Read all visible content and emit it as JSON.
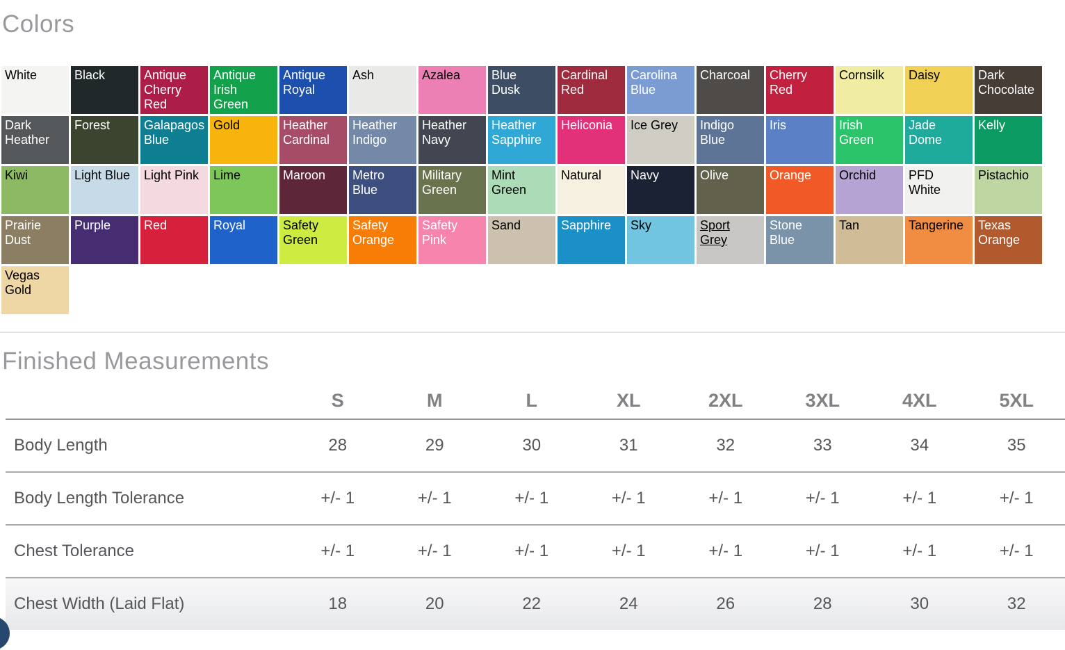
{
  "colors": {
    "heading": "Colors",
    "swatches": [
      {
        "name": "White",
        "bg": "#f4f4f3",
        "text": "#000000"
      },
      {
        "name": "Black",
        "bg": "#212829",
        "text": "#ffffff"
      },
      {
        "name": "Antique Cherry Red",
        "bg": "#ac1e47",
        "text": "#ffffff"
      },
      {
        "name": "Antique Irish Green",
        "bg": "#13a24b",
        "text": "#ffffff"
      },
      {
        "name": "Antique Royal",
        "bg": "#1c4fae",
        "text": "#ffffff"
      },
      {
        "name": "Ash",
        "bg": "#e9e9e7",
        "text": "#000000"
      },
      {
        "name": "Azalea",
        "bg": "#ec7fb4",
        "text": "#000000"
      },
      {
        "name": "Blue Dusk",
        "bg": "#3d4d64",
        "text": "#ffffff"
      },
      {
        "name": "Cardinal Red",
        "bg": "#9e2c3e",
        "text": "#ffffff"
      },
      {
        "name": "Carolina Blue",
        "bg": "#7b9cd3",
        "text": "#ffffff"
      },
      {
        "name": "Charcoal",
        "bg": "#4e4b49",
        "text": "#ffffff"
      },
      {
        "name": "Cherry Red",
        "bg": "#c2203f",
        "text": "#ffffff"
      },
      {
        "name": "Cornsilk",
        "bg": "#f0eca1",
        "text": "#000000"
      },
      {
        "name": "Daisy",
        "bg": "#f0d155",
        "text": "#000000"
      },
      {
        "name": "Dark Chocolate",
        "bg": "#463d37",
        "text": "#ffffff"
      },
      {
        "name": "Dark Heather",
        "bg": "#54585a",
        "text": "#ffffff"
      },
      {
        "name": "Forest",
        "bg": "#3b442f",
        "text": "#ffffff"
      },
      {
        "name": "Galapagos Blue",
        "bg": "#0e7f93",
        "text": "#ffffff"
      },
      {
        "name": "Gold",
        "bg": "#f6b40d",
        "text": "#000000"
      },
      {
        "name": "Heather Cardinal",
        "bg": "#a64c66",
        "text": "#ffffff"
      },
      {
        "name": "Heather Indigo",
        "bg": "#7389a7",
        "text": "#ffffff"
      },
      {
        "name": "Heather Navy",
        "bg": "#414650",
        "text": "#ffffff"
      },
      {
        "name": "Heather Sapphire",
        "bg": "#2fa8d5",
        "text": "#ffffff"
      },
      {
        "name": "Heliconia",
        "bg": "#e23179",
        "text": "#ffffff"
      },
      {
        "name": "Ice Grey",
        "bg": "#d0cdc4",
        "text": "#000000"
      },
      {
        "name": "Indigo Blue",
        "bg": "#5d7496",
        "text": "#ffffff"
      },
      {
        "name": "Iris",
        "bg": "#5b80c6",
        "text": "#ffffff"
      },
      {
        "name": "Irish Green",
        "bg": "#2cc46a",
        "text": "#ffffff"
      },
      {
        "name": "Jade Dome",
        "bg": "#1fab9b",
        "text": "#ffffff"
      },
      {
        "name": "Kelly",
        "bg": "#0b9b62",
        "text": "#ffffff"
      },
      {
        "name": "Kiwi",
        "bg": "#8db965",
        "text": "#000000"
      },
      {
        "name": "Light Blue",
        "bg": "#c6dbe7",
        "text": "#000000"
      },
      {
        "name": "Light Pink",
        "bg": "#f4d9e0",
        "text": "#000000"
      },
      {
        "name": "Lime",
        "bg": "#7cc65a",
        "text": "#000000"
      },
      {
        "name": "Maroon",
        "bg": "#5d2639",
        "text": "#ffffff"
      },
      {
        "name": "Metro Blue",
        "bg": "#3d4f7e",
        "text": "#ffffff"
      },
      {
        "name": "Military Green",
        "bg": "#69734e",
        "text": "#ffffff"
      },
      {
        "name": "Mint Green",
        "bg": "#abdcb7",
        "text": "#000000"
      },
      {
        "name": "Natural",
        "bg": "#f6f0e1",
        "text": "#000000"
      },
      {
        "name": "Navy",
        "bg": "#1a2233",
        "text": "#ffffff"
      },
      {
        "name": "Olive",
        "bg": "#62614b",
        "text": "#ffffff"
      },
      {
        "name": "Orange",
        "bg": "#f15a26",
        "text": "#ffffff"
      },
      {
        "name": "Orchid",
        "bg": "#b5a3d3",
        "text": "#000000"
      },
      {
        "name": "PFD White",
        "bg": "#f1f1ef",
        "text": "#000000"
      },
      {
        "name": "Pistachio",
        "bg": "#bed7a2",
        "text": "#000000"
      },
      {
        "name": "Prairie Dust",
        "bg": "#8b7e63",
        "text": "#ffffff"
      },
      {
        "name": "Purple",
        "bg": "#462d72",
        "text": "#ffffff"
      },
      {
        "name": "Red",
        "bg": "#d7213c",
        "text": "#ffffff"
      },
      {
        "name": "Royal",
        "bg": "#1f62c9",
        "text": "#ffffff"
      },
      {
        "name": "Safety Green",
        "bg": "#cdeb40",
        "text": "#000000"
      },
      {
        "name": "Safety Orange",
        "bg": "#f87d07",
        "text": "#ffffff"
      },
      {
        "name": "Safety Pink",
        "bg": "#f684ad",
        "text": "#ffffff"
      },
      {
        "name": "Sand",
        "bg": "#ccc1ae",
        "text": "#000000"
      },
      {
        "name": "Sapphire",
        "bg": "#1b90c6",
        "text": "#ffffff"
      },
      {
        "name": "Sky",
        "bg": "#72c5e0",
        "text": "#000000"
      },
      {
        "name": "Sport Grey",
        "bg": "#c8c7c5",
        "text": "#000000",
        "link": true
      },
      {
        "name": "Stone Blue",
        "bg": "#7b93a8",
        "text": "#ffffff"
      },
      {
        "name": "Tan",
        "bg": "#d0bc96",
        "text": "#000000"
      },
      {
        "name": "Tangerine",
        "bg": "#f18d42",
        "text": "#000000"
      },
      {
        "name": "Texas Orange",
        "bg": "#b05a2e",
        "text": "#ffffff"
      },
      {
        "name": "Vegas Gold",
        "bg": "#eed6a5",
        "text": "#000000"
      }
    ]
  },
  "measurements": {
    "heading": "Finished Measurements",
    "sizes": [
      "S",
      "M",
      "L",
      "XL",
      "2XL",
      "3XL",
      "4XL",
      "5XL"
    ],
    "rows": [
      {
        "label": "Body Length",
        "values": [
          "28",
          "29",
          "30",
          "31",
          "32",
          "33",
          "34",
          "35"
        ]
      },
      {
        "label": "Body Length Tolerance",
        "values": [
          "+/- 1",
          "+/- 1",
          "+/- 1",
          "+/- 1",
          "+/- 1",
          "+/- 1",
          "+/- 1",
          "+/- 1"
        ]
      },
      {
        "label": "Chest Tolerance",
        "values": [
          "+/- 1",
          "+/- 1",
          "+/- 1",
          "+/- 1",
          "+/- 1",
          "+/- 1",
          "+/- 1",
          "+/- 1"
        ]
      },
      {
        "label": "Chest Width (Laid Flat)",
        "values": [
          "18",
          "20",
          "22",
          "24",
          "26",
          "28",
          "30",
          "32"
        ]
      }
    ]
  },
  "floating_button": {
    "color": "#26476e"
  }
}
